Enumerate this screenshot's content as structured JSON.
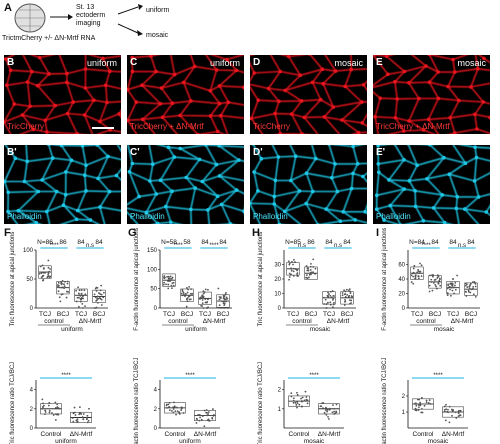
{
  "panel_A": {
    "label": "A",
    "embryo_caption": "TrictmCherry +/- ΔN-Mrtf RNA",
    "arrow_text": "St. 13\nectoderm\nimaging",
    "outcomes": [
      "uniform",
      "mosaic"
    ]
  },
  "image_row_top": [
    {
      "label": "B",
      "state": "uniform",
      "caption": "TricCherry"
    },
    {
      "label": "C",
      "state": "uniform",
      "caption": "TricCherry + ΔN-Mrtf"
    },
    {
      "label": "D",
      "state": "mosaic",
      "caption": "TricCherry"
    },
    {
      "label": "E",
      "state": "mosaic",
      "caption": "TricCherry + ΔN-Mrtf"
    }
  ],
  "image_row_bottom": [
    {
      "label": "B'",
      "caption": "Phalloidin"
    },
    {
      "label": "C'",
      "caption": "Phalloidin"
    },
    {
      "label": "D'",
      "caption": "Phalloidin"
    },
    {
      "label": "E'",
      "caption": "Phalloidin"
    }
  ],
  "colors": {
    "red_channel": "#e8141e",
    "cyan_channel": "#1fc7e6",
    "significance": "#19b3e6"
  },
  "chart_data": [
    {
      "panel": "F",
      "type": "scatter",
      "ylabel": "Tric fluorescence at apical junctions",
      "ylim": [
        0,
        100
      ],
      "yticks": [
        "0",
        "50",
        "100"
      ],
      "categories": [
        "TCJ",
        "BCJ",
        "TCJ",
        "BCJ"
      ],
      "groups": [
        "control",
        "ΔN-Mrtf"
      ],
      "condition": "uniform",
      "n": [
        "N=86",
        "86",
        "84",
        "84"
      ],
      "sig": [
        "****",
        "n.s"
      ],
      "medians": [
        62,
        35,
        22,
        20
      ]
    },
    {
      "panel": "G",
      "type": "scatter",
      "ylabel": "F-actin fluorescence at apical junctions",
      "ylim": [
        0,
        150
      ],
      "yticks": [
        "0",
        "50",
        "100",
        "150"
      ],
      "categories": [
        "TCJ",
        "BCJ",
        "TCJ",
        "BCJ"
      ],
      "groups": [
        "control",
        "ΔN-Mrtf"
      ],
      "condition": "uniform",
      "n": [
        "N=58",
        "58",
        "84",
        "84"
      ],
      "sig": [
        "****",
        "****"
      ],
      "medians": [
        72,
        33,
        25,
        18
      ]
    },
    {
      "panel": "H",
      "type": "scatter",
      "ylabel": "Tric fluorescence at apical junctions",
      "ylim": [
        0,
        40
      ],
      "yticks": [
        "0",
        "10",
        "20",
        "30"
      ],
      "categories": [
        "TCJ",
        "BCJ",
        "TCJ",
        "BCJ"
      ],
      "groups": [
        "control",
        "ΔN-Mrtf"
      ],
      "condition": "mosaic",
      "n": [
        "N=85",
        "86",
        "84",
        "84"
      ],
      "sig": [
        "n.s",
        "n.s"
      ],
      "medians": [
        27,
        24,
        7,
        7
      ]
    },
    {
      "panel": "I",
      "type": "scatter",
      "ylabel": "F-actin fluorescence at apical junctions",
      "ylim": [
        0,
        80
      ],
      "yticks": [
        "0",
        "20",
        "40",
        "60"
      ],
      "categories": [
        "TCJ",
        "BCJ",
        "TCJ",
        "BCJ"
      ],
      "groups": [
        "control",
        "ΔN-Mrtf"
      ],
      "condition": "mosaic",
      "n": [
        "N=84",
        "84",
        "84",
        "84"
      ],
      "sig": [
        "****",
        "n.s"
      ],
      "medians": [
        48,
        36,
        28,
        26
      ]
    },
    {
      "panel": "F2",
      "type": "scatter",
      "ylabel": "Tric fluorescence ratio TCJ/BCJ",
      "ylim": [
        0,
        5
      ],
      "yticks": [
        "0",
        "2",
        "4"
      ],
      "categories": [
        "Control",
        "ΔN-Mrtf"
      ],
      "condition": "uniform",
      "sig": [
        "****"
      ],
      "medians": [
        2.0,
        1.1
      ]
    },
    {
      "panel": "G2",
      "type": "scatter",
      "ylabel": "F-actin fluorescence ratio TCJ/BCJ",
      "ylim": [
        0,
        5
      ],
      "yticks": [
        "0",
        "2",
        "4"
      ],
      "categories": [
        "Control",
        "ΔN-Mrtf"
      ],
      "condition": "uniform",
      "sig": [
        "****"
      ],
      "medians": [
        2.1,
        1.3
      ]
    },
    {
      "panel": "H2",
      "type": "scatter",
      "ylabel": "Tric fluorescence ratio TCJ/BCJ",
      "ylim": [
        0,
        2.5
      ],
      "yticks": [
        "1",
        "2"
      ],
      "categories": [
        "Control",
        "ΔN-Mrtf"
      ],
      "condition": "mosaic",
      "sig": [
        "****"
      ],
      "medians": [
        1.4,
        1.0
      ]
    },
    {
      "panel": "I2",
      "type": "scatter",
      "ylabel": "F-actin fluorescence ratio TCJ/BCJ",
      "ylim": [
        0,
        3
      ],
      "yticks": [
        "1",
        "2"
      ],
      "categories": [
        "Control",
        "ΔN-Mrtf"
      ],
      "condition": "mosaic",
      "sig": [
        "****"
      ],
      "medians": [
        1.5,
        1.0
      ]
    }
  ]
}
